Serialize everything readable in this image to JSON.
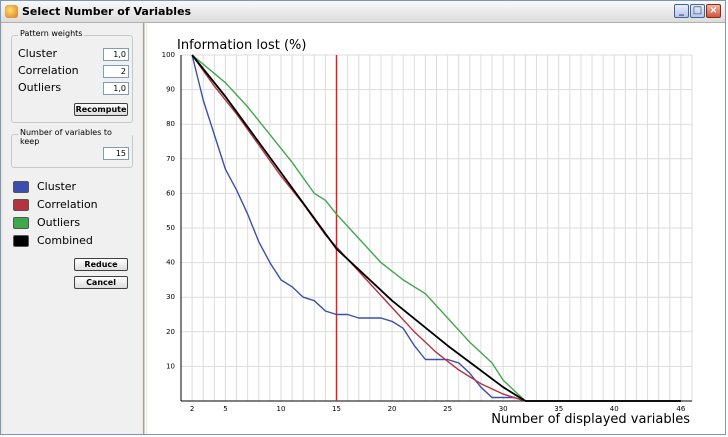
{
  "window": {
    "title": "Select Number of Variables",
    "controls": {
      "minimize": "_",
      "maximize": "□",
      "close": "×"
    }
  },
  "pattern_weights": {
    "group_title": "Pattern weights",
    "rows": [
      {
        "label": "Cluster",
        "value": "1,0"
      },
      {
        "label": "Correlation",
        "value": "2"
      },
      {
        "label": "Outliers",
        "value": "1,0"
      }
    ],
    "recompute_label": "Recompute"
  },
  "keep": {
    "group_title": "Number of variables to keep",
    "value": "15"
  },
  "legend": [
    {
      "label": "Cluster",
      "color": "#3b4fae"
    },
    {
      "label": "Correlation",
      "color": "#b5323f"
    },
    {
      "label": "Outliers",
      "color": "#3fa84a"
    },
    {
      "label": "Combined",
      "color": "#000000"
    }
  ],
  "buttons": {
    "reduce": "Reduce",
    "cancel": "Cancel"
  },
  "chart_data": {
    "type": "line",
    "title": "Information lost (%)",
    "xlabel": "Number of displayed variables",
    "ylabel": "",
    "xlim": [
      1,
      47
    ],
    "ylim": [
      0,
      100
    ],
    "x_tick_labels": [
      2,
      5,
      10,
      15,
      20,
      25,
      30,
      35,
      40,
      46
    ],
    "y_tick_labels": [
      10,
      20,
      30,
      40,
      50,
      60,
      70,
      80,
      90,
      100
    ],
    "grid": true,
    "vertical_marker": {
      "x": 15,
      "color": "#e02020"
    },
    "series": [
      {
        "name": "Cluster",
        "color": "#3b4fae",
        "x": [
          2,
          3,
          4,
          5,
          6,
          7,
          8,
          9,
          10,
          11,
          12,
          13,
          14,
          15,
          16,
          17,
          18,
          19,
          20,
          21,
          22,
          23,
          24,
          25,
          26,
          27,
          28,
          29,
          30,
          31,
          32,
          46
        ],
        "y": [
          100,
          87,
          77,
          67,
          61,
          54,
          46,
          40,
          35,
          33,
          30,
          29,
          26,
          25,
          25,
          24,
          24,
          24,
          23,
          21,
          16,
          12,
          12,
          12,
          11,
          8,
          4,
          1,
          1,
          1,
          0,
          0
        ]
      },
      {
        "name": "Correlation",
        "color": "#b5323f",
        "x": [
          2,
          4,
          6,
          8,
          10,
          12,
          14,
          16,
          18,
          20,
          22,
          24,
          26,
          28,
          30,
          32,
          46
        ],
        "y": [
          100,
          91,
          83,
          74,
          65,
          57,
          48,
          41,
          34,
          27,
          20,
          14,
          9,
          5,
          2,
          0,
          0
        ]
      },
      {
        "name": "Outliers",
        "color": "#3fa84a",
        "x": [
          2,
          5,
          7,
          9,
          11,
          13,
          14,
          15,
          17,
          19,
          21,
          23,
          25,
          27,
          29,
          30,
          31,
          32,
          46
        ],
        "y": [
          100,
          92,
          85,
          77,
          69,
          60,
          58,
          54,
          47,
          40,
          35,
          31,
          24,
          17,
          11,
          6,
          3,
          0,
          0
        ]
      },
      {
        "name": "Combined",
        "color": "#000000",
        "x": [
          2,
          5,
          10,
          15,
          20,
          25,
          30,
          32,
          46
        ],
        "y": [
          100,
          88,
          66,
          44,
          29,
          16,
          4,
          0,
          0
        ]
      }
    ]
  }
}
